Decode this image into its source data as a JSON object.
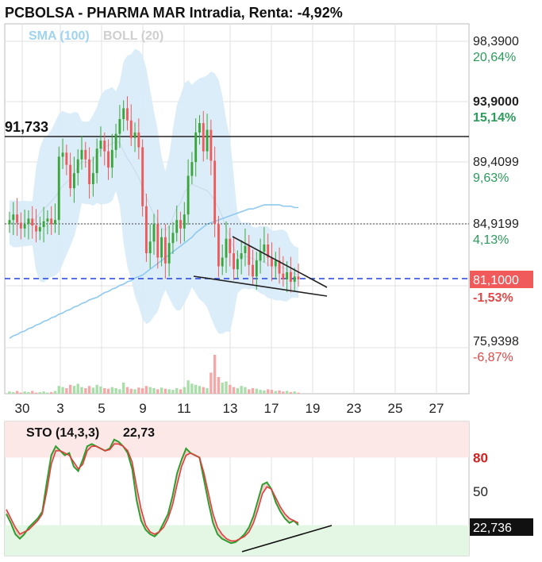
{
  "header": {
    "title": "PCBOLSA - PHARMA MAR Intradia, Renta: -4,92%",
    "indicators": [
      "SMA (100)",
      "BOLL (20)"
    ]
  },
  "colors": {
    "up": "#3aa63a",
    "down": "#f05a5a",
    "sma": "#8ec9f0",
    "boll_fill": "#d8ebfa",
    "price_badge": "#f05a5a",
    "sto_fast": "#2e9e2e",
    "sto_slow": "#e03c3c"
  },
  "chart_data": [
    {
      "type": "candlestick",
      "title": "PCBOLSA - PHARMA MAR Intradia, Renta: -4,92%",
      "x_tick_labels": [
        "30",
        "3",
        "5",
        "9",
        "11",
        "13",
        "17",
        "19",
        "23",
        "25",
        "27"
      ],
      "y_tick_labels": [
        {
          "price": "98,3900",
          "pct": "20,64%"
        },
        {
          "price": "93,9000",
          "pct": "15,14%"
        },
        {
          "price": "89,4099",
          "pct": "9,63%"
        },
        {
          "price": "84,9199",
          "pct": "4,13%"
        },
        {
          "price": "75,9398",
          "pct": "-6,87%"
        }
      ],
      "ylim": [
        72.5,
        100.5
      ],
      "current_price": {
        "label": "81,1000",
        "pct": "-1,53%"
      },
      "resistance_label": "91,733",
      "reference_price": 84.92,
      "legend": [
        "SMA (100)",
        "BOLL (20)"
      ],
      "series_close": [
        85.2,
        85.6,
        85.0,
        84.6,
        84.9,
        85.3,
        84.8,
        84.4,
        84.7,
        85.1,
        85.3,
        84.9,
        85.2,
        89.8,
        90.1,
        89.2,
        87.5,
        88.6,
        89.6,
        90.3,
        89.6,
        87.8,
        88.6,
        90.4,
        91.0,
        90.2,
        89.0,
        90.3,
        91.5,
        92.6,
        93.4,
        92.5,
        91.2,
        91.6,
        90.5,
        86.2,
        82.9,
        83.7,
        84.9,
        82.6,
        84.0,
        82.2,
        83.6,
        84.3,
        85.2,
        84.6,
        85.6,
        88.4,
        89.4,
        91.6,
        92.3,
        90.2,
        91.8,
        89.5,
        84.9,
        82.0,
        82.6,
        83.9,
        82.9,
        81.8,
        82.5,
        82.9,
        83.4,
        82.1,
        81.3,
        82.4,
        83.0,
        83.5,
        82.6,
        82.0,
        82.4,
        81.5,
        81.1,
        81.6,
        80.9,
        81.3,
        81.1
      ],
      "sma_100": [
        76.2,
        76.4,
        76.5,
        76.7,
        76.8,
        77.0,
        77.1,
        77.3,
        77.4,
        77.6,
        77.7,
        77.9,
        78.0,
        78.2,
        78.3,
        78.5,
        78.6,
        78.8,
        78.9,
        79.1,
        79.2,
        79.4,
        79.5,
        79.6,
        79.8,
        80.0,
        80.1,
        80.3,
        80.4,
        80.6,
        80.7,
        80.9,
        81.0,
        81.2,
        81.3,
        81.4,
        81.6,
        81.8,
        82.0,
        82.2,
        82.4,
        82.6,
        82.8,
        83.0,
        83.2,
        83.4,
        83.6,
        83.8,
        84.0,
        84.3,
        84.5,
        84.7,
        84.9,
        85.0,
        85.1,
        85.2,
        85.3,
        85.4,
        85.5,
        85.6,
        85.7,
        85.8,
        85.9,
        86.0,
        86.0,
        86.1,
        86.2,
        86.3,
        86.3,
        86.3,
        86.3,
        86.3,
        86.2,
        86.2,
        86.2,
        86.1,
        86.1
      ]
    },
    {
      "type": "bar",
      "title": "",
      "description_values": "relative volume per candle (0-1)",
      "values": [
        0.04,
        0.03,
        0.05,
        0.02,
        0.04,
        0.03,
        0.05,
        0.02,
        0.03,
        0.04,
        0.02,
        0.03,
        0.05,
        0.14,
        0.12,
        0.1,
        0.16,
        0.14,
        0.18,
        0.12,
        0.1,
        0.14,
        0.11,
        0.16,
        0.13,
        0.1,
        0.09,
        0.12,
        0.1,
        0.08,
        0.2,
        0.12,
        0.09,
        0.08,
        0.11,
        0.1,
        0.14,
        0.12,
        0.1,
        0.08,
        0.11,
        0.09,
        0.08,
        0.07,
        0.1,
        0.08,
        0.12,
        0.24,
        0.18,
        0.16,
        0.14,
        0.12,
        0.1,
        0.38,
        0.7,
        0.3,
        0.2,
        0.22,
        0.16,
        0.12,
        0.1,
        0.14,
        0.12,
        0.08,
        0.1,
        0.09,
        0.07,
        0.06,
        0.08,
        0.07,
        0.05,
        0.06,
        0.04,
        0.05,
        0.03,
        0.04,
        0.02
      ]
    },
    {
      "type": "line",
      "title": "STO (14,3,3)",
      "value_label": "22,73",
      "current_badge": "22,736",
      "y_tick_labels": [
        "80",
        "50"
      ],
      "ylim": [
        0,
        100
      ],
      "series": [
        {
          "name": "STO %K",
          "values": [
            30,
            22,
            12,
            8,
            12,
            18,
            22,
            26,
            32,
            58,
            82,
            90,
            86,
            82,
            84,
            72,
            68,
            78,
            90,
            92,
            90,
            88,
            86,
            88,
            96,
            94,
            90,
            84,
            70,
            42,
            24,
            16,
            12,
            10,
            14,
            22,
            30,
            46,
            66,
            78,
            88,
            84,
            82,
            80,
            60,
            40,
            22,
            12,
            8,
            6,
            4,
            5,
            8,
            12,
            18,
            28,
            42,
            56,
            58,
            52,
            40,
            32,
            26,
            22,
            24,
            20
          ]
        },
        {
          "name": "STO %D",
          "values": [
            34,
            26,
            18,
            12,
            14,
            16,
            20,
            24,
            30,
            50,
            74,
            86,
            86,
            84,
            82,
            76,
            70,
            74,
            86,
            90,
            90,
            88,
            86,
            87,
            92,
            92,
            90,
            86,
            76,
            54,
            34,
            20,
            14,
            12,
            14,
            18,
            26,
            38,
            56,
            72,
            82,
            84,
            82,
            80,
            66,
            48,
            30,
            18,
            12,
            8,
            6,
            6,
            8,
            10,
            14,
            22,
            34,
            48,
            54,
            52,
            44,
            36,
            30,
            26,
            24,
            22
          ]
        }
      ]
    }
  ]
}
